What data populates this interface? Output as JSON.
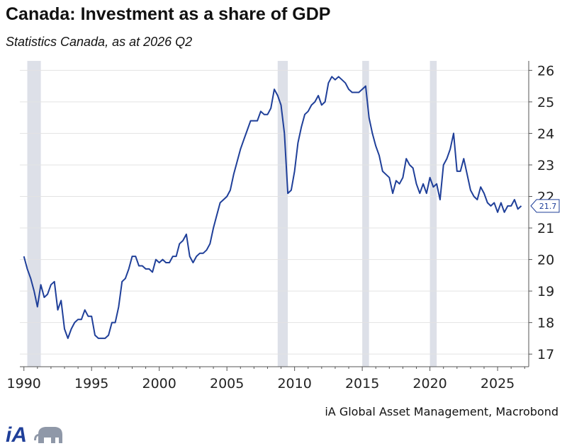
{
  "title": "Canada: Investment as a share of GDP",
  "subtitle": "Statistics Canada, as at 2026 Q2",
  "source": "iA Global Asset Management, Macrobond",
  "logo_text": "iA",
  "colors": {
    "line": "#1f3f99",
    "recession": "#dde0e8",
    "grid": "#e3e3e3",
    "axis": "#555555"
  },
  "chart_data": {
    "type": "line",
    "title": "Canada: Investment as a share of GDP",
    "subtitle": "Statistics Canada, as at 2026 Q2",
    "xlabel": "",
    "ylabel": "",
    "xlim": [
      1989.7,
      2027.3
    ],
    "ylim": [
      16.6,
      26.3
    ],
    "x_ticks": [
      1990,
      1995,
      2000,
      2005,
      2010,
      2015,
      2020,
      2025
    ],
    "y_ticks": [
      17,
      18,
      19,
      20,
      21,
      22,
      23,
      24,
      25,
      26
    ],
    "y_axis_side": "right",
    "grid": true,
    "last_value_label": "21.7",
    "recession_bands": [
      [
        1990.25,
        1991.25
      ],
      [
        2008.75,
        2009.5
      ],
      [
        2015.0,
        2015.5
      ],
      [
        2020.0,
        2020.5
      ]
    ],
    "series": [
      {
        "values": [
          [
            1990.0,
            20.1
          ],
          [
            1990.25,
            19.7
          ],
          [
            1990.5,
            19.4
          ],
          [
            1990.75,
            19.0
          ],
          [
            1991.0,
            18.5
          ],
          [
            1991.25,
            19.2
          ],
          [
            1991.5,
            18.8
          ],
          [
            1991.75,
            18.9
          ],
          [
            1992.0,
            19.2
          ],
          [
            1992.25,
            19.3
          ],
          [
            1992.5,
            18.4
          ],
          [
            1992.75,
            18.7
          ],
          [
            1993.0,
            17.8
          ],
          [
            1993.25,
            17.5
          ],
          [
            1993.5,
            17.8
          ],
          [
            1993.75,
            18.0
          ],
          [
            1994.0,
            18.1
          ],
          [
            1994.25,
            18.1
          ],
          [
            1994.5,
            18.4
          ],
          [
            1994.75,
            18.2
          ],
          [
            1995.0,
            18.2
          ],
          [
            1995.25,
            17.6
          ],
          [
            1995.5,
            17.5
          ],
          [
            1995.75,
            17.5
          ],
          [
            1996.0,
            17.5
          ],
          [
            1996.25,
            17.6
          ],
          [
            1996.5,
            18.0
          ],
          [
            1996.75,
            18.0
          ],
          [
            1997.0,
            18.5
          ],
          [
            1997.25,
            19.3
          ],
          [
            1997.5,
            19.4
          ],
          [
            1997.75,
            19.7
          ],
          [
            1998.0,
            20.1
          ],
          [
            1998.25,
            20.1
          ],
          [
            1998.5,
            19.8
          ],
          [
            1998.75,
            19.8
          ],
          [
            1999.0,
            19.7
          ],
          [
            1999.25,
            19.7
          ],
          [
            1999.5,
            19.6
          ],
          [
            1999.75,
            20.0
          ],
          [
            2000.0,
            19.9
          ],
          [
            2000.25,
            20.0
          ],
          [
            2000.5,
            19.9
          ],
          [
            2000.75,
            19.9
          ],
          [
            2001.0,
            20.1
          ],
          [
            2001.25,
            20.1
          ],
          [
            2001.5,
            20.5
          ],
          [
            2001.75,
            20.6
          ],
          [
            2002.0,
            20.8
          ],
          [
            2002.25,
            20.1
          ],
          [
            2002.5,
            19.9
          ],
          [
            2002.75,
            20.1
          ],
          [
            2003.0,
            20.2
          ],
          [
            2003.25,
            20.2
          ],
          [
            2003.5,
            20.3
          ],
          [
            2003.75,
            20.5
          ],
          [
            2004.0,
            21.0
          ],
          [
            2004.25,
            21.4
          ],
          [
            2004.5,
            21.8
          ],
          [
            2004.75,
            21.9
          ],
          [
            2005.0,
            22.0
          ],
          [
            2005.25,
            22.2
          ],
          [
            2005.5,
            22.7
          ],
          [
            2005.75,
            23.1
          ],
          [
            2006.0,
            23.5
          ],
          [
            2006.25,
            23.8
          ],
          [
            2006.5,
            24.1
          ],
          [
            2006.75,
            24.4
          ],
          [
            2007.0,
            24.4
          ],
          [
            2007.25,
            24.4
          ],
          [
            2007.5,
            24.7
          ],
          [
            2007.75,
            24.6
          ],
          [
            2008.0,
            24.6
          ],
          [
            2008.25,
            24.8
          ],
          [
            2008.5,
            25.4
          ],
          [
            2008.75,
            25.2
          ],
          [
            2009.0,
            24.9
          ],
          [
            2009.25,
            24.0
          ],
          [
            2009.5,
            22.1
          ],
          [
            2009.75,
            22.2
          ],
          [
            2010.0,
            22.8
          ],
          [
            2010.25,
            23.7
          ],
          [
            2010.5,
            24.2
          ],
          [
            2010.75,
            24.6
          ],
          [
            2011.0,
            24.7
          ],
          [
            2011.25,
            24.9
          ],
          [
            2011.5,
            25.0
          ],
          [
            2011.75,
            25.2
          ],
          [
            2012.0,
            24.9
          ],
          [
            2012.25,
            25.0
          ],
          [
            2012.5,
            25.6
          ],
          [
            2012.75,
            25.8
          ],
          [
            2013.0,
            25.7
          ],
          [
            2013.25,
            25.8
          ],
          [
            2013.5,
            25.7
          ],
          [
            2013.75,
            25.6
          ],
          [
            2014.0,
            25.4
          ],
          [
            2014.25,
            25.3
          ],
          [
            2014.5,
            25.3
          ],
          [
            2014.75,
            25.3
          ],
          [
            2015.0,
            25.4
          ],
          [
            2015.25,
            25.5
          ],
          [
            2015.5,
            24.5
          ],
          [
            2015.75,
            24.0
          ],
          [
            2016.0,
            23.6
          ],
          [
            2016.25,
            23.3
          ],
          [
            2016.5,
            22.8
          ],
          [
            2016.75,
            22.7
          ],
          [
            2017.0,
            22.6
          ],
          [
            2017.25,
            22.1
          ],
          [
            2017.5,
            22.5
          ],
          [
            2017.75,
            22.4
          ],
          [
            2018.0,
            22.6
          ],
          [
            2018.25,
            23.2
          ],
          [
            2018.5,
            23.0
          ],
          [
            2018.75,
            22.9
          ],
          [
            2019.0,
            22.4
          ],
          [
            2019.25,
            22.1
          ],
          [
            2019.5,
            22.4
          ],
          [
            2019.75,
            22.1
          ],
          [
            2020.0,
            22.6
          ],
          [
            2020.25,
            22.3
          ],
          [
            2020.5,
            22.4
          ],
          [
            2020.75,
            21.9
          ],
          [
            2021.0,
            23.0
          ],
          [
            2021.25,
            23.2
          ],
          [
            2021.5,
            23.5
          ],
          [
            2021.75,
            24.0
          ],
          [
            2022.0,
            22.8
          ],
          [
            2022.25,
            22.8
          ],
          [
            2022.5,
            23.2
          ],
          [
            2022.75,
            22.7
          ],
          [
            2023.0,
            22.2
          ],
          [
            2023.25,
            22.0
          ],
          [
            2023.5,
            21.9
          ],
          [
            2023.75,
            22.3
          ],
          [
            2024.0,
            22.1
          ],
          [
            2024.25,
            21.8
          ],
          [
            2024.5,
            21.7
          ],
          [
            2024.75,
            21.8
          ],
          [
            2025.0,
            21.5
          ],
          [
            2025.25,
            21.8
          ],
          [
            2025.5,
            21.5
          ],
          [
            2025.75,
            21.7
          ],
          [
            2026.0,
            21.7
          ],
          [
            2026.25,
            21.9
          ],
          [
            2026.5,
            21.6
          ],
          [
            2026.75,
            21.7
          ]
        ]
      }
    ]
  }
}
